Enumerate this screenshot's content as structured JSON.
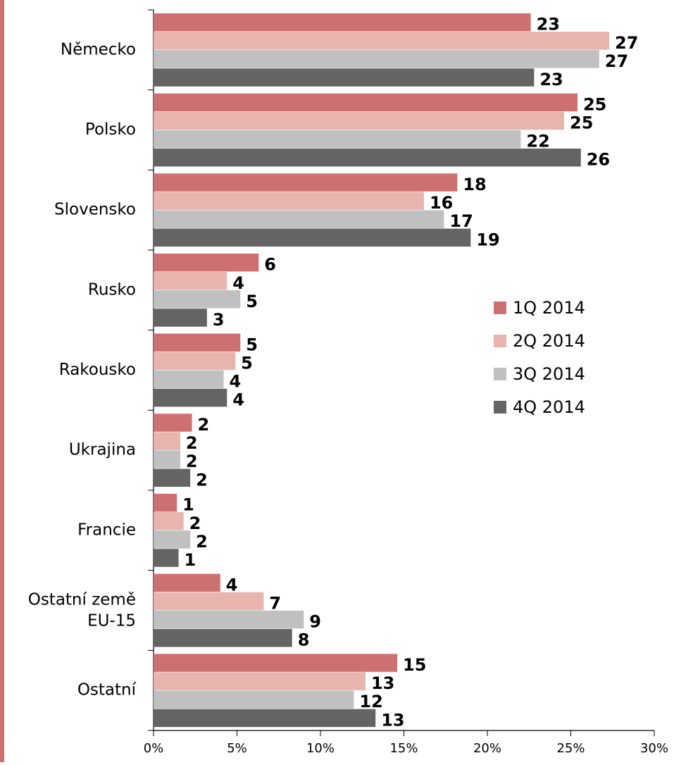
{
  "chart_data": {
    "type": "bar",
    "orientation": "horizontal",
    "categories": [
      "Německo",
      "Polsko",
      "Slovensko",
      "Rusko",
      "Rakousko",
      "Ukrajina",
      "Francie",
      "Ostatní země EU-15",
      "Ostatní"
    ],
    "series": [
      {
        "name": "1Q 2014",
        "color": "#cd7070",
        "values": [
          22.6,
          25.4,
          18.2,
          6.3,
          5.2,
          2.3,
          1.4,
          4.0,
          14.6
        ],
        "value_labels": [
          "23",
          "25",
          "18",
          "6",
          "5",
          "2",
          "1",
          "4",
          "15"
        ]
      },
      {
        "name": "2Q 2014",
        "color": "#e8b4ae",
        "values": [
          27.3,
          24.6,
          16.2,
          4.4,
          4.9,
          1.6,
          1.8,
          6.6,
          12.7
        ],
        "value_labels": [
          "27",
          "25",
          "16",
          "4",
          "5",
          "2",
          "2",
          "7",
          "13"
        ]
      },
      {
        "name": "3Q 2014",
        "color": "#c0c0c0",
        "values": [
          26.7,
          22.0,
          17.4,
          5.2,
          4.2,
          1.6,
          2.2,
          9.0,
          12.0
        ],
        "value_labels": [
          "27",
          "22",
          "17",
          "5",
          "4",
          "2",
          "2",
          "9",
          "12"
        ]
      },
      {
        "name": "4Q 2014",
        "color": "#646464",
        "values": [
          22.8,
          25.6,
          19.0,
          3.2,
          4.4,
          2.2,
          1.5,
          8.3,
          13.3
        ],
        "value_labels": [
          "23",
          "26",
          "19",
          "3",
          "4",
          "2",
          "1",
          "8",
          "13"
        ]
      }
    ],
    "xlim": [
      0,
      30
    ],
    "xticks": [
      {
        "value": 0,
        "label": "0%"
      },
      {
        "value": 5,
        "label": "5%"
      },
      {
        "value": 10,
        "label": "10%"
      },
      {
        "value": 15,
        "label": "15%"
      },
      {
        "value": 20,
        "label": "20%"
      },
      {
        "value": 25,
        "label": "25%"
      },
      {
        "value": 30,
        "label": "30%"
      }
    ],
    "legend": "right"
  }
}
